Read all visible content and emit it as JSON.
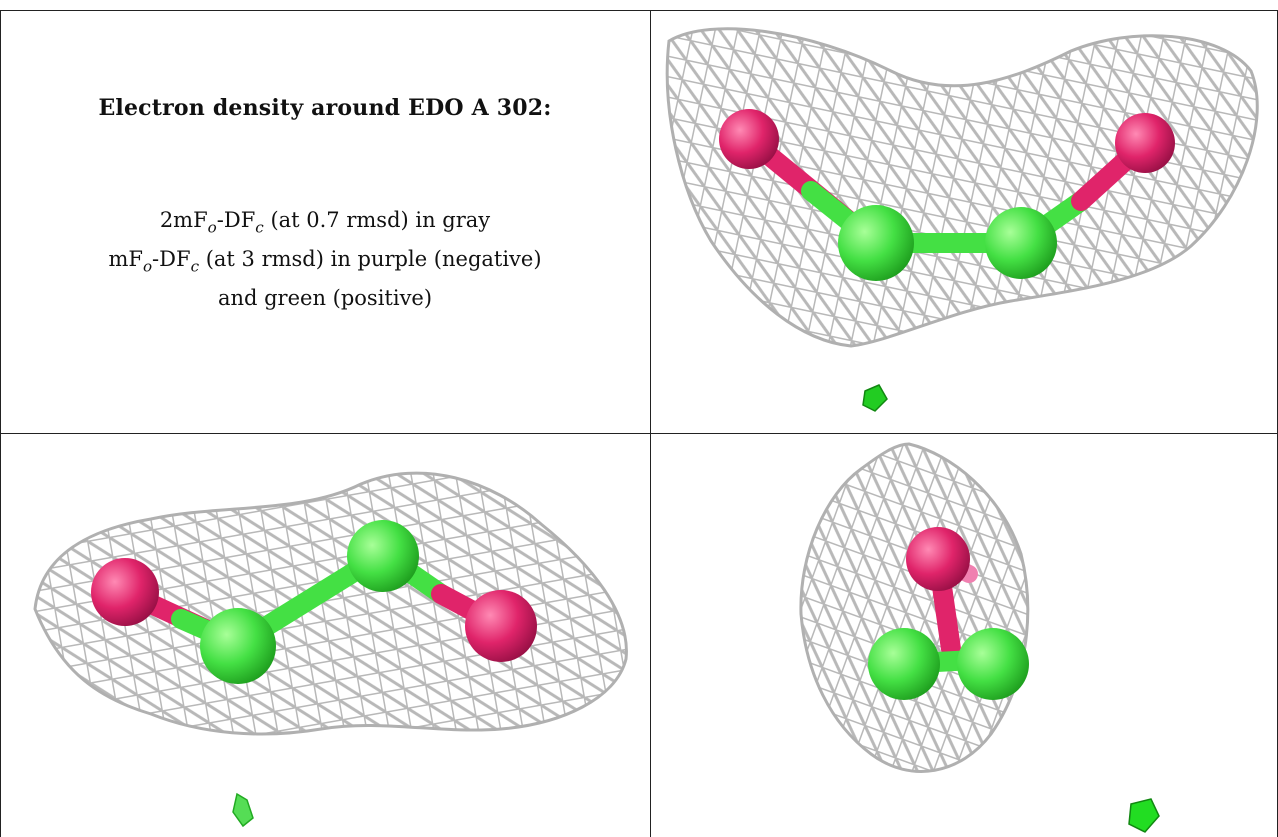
{
  "caption": {
    "title": "Electron density around EDO A 302:",
    "line1": {
      "a": "2mF",
      "b": "o",
      "c": "-DF",
      "d": "c",
      "e": " (at 0.7 rmsd) in gray"
    },
    "line2": {
      "a": "mF",
      "b": "o",
      "c": "-DF",
      "d": "c",
      "e": " (at 3 rmsd) in purple (negative)"
    },
    "line3": "and green (positive)"
  },
  "colors": {
    "mesh_2fofc": "#b8b8b8",
    "oxygen": "#e0246a",
    "carbon": "#44e044",
    "positive_difference": "#22cc22",
    "border": "#222222"
  },
  "panels": [
    {
      "name": "view-top-right",
      "contents": [
        "gray-mesh",
        "two-oxygen-spheres",
        "two-carbon-spheres",
        "small-green-positive-blob"
      ]
    },
    {
      "name": "view-bottom-left",
      "contents": [
        "gray-mesh",
        "two-oxygen-spheres",
        "two-carbon-spheres",
        "small-green-positive-blob"
      ]
    },
    {
      "name": "view-bottom-right",
      "contents": [
        "gray-mesh",
        "two-oxygen-spheres",
        "two-carbon-spheres",
        "small-green-positive-blob"
      ]
    }
  ]
}
